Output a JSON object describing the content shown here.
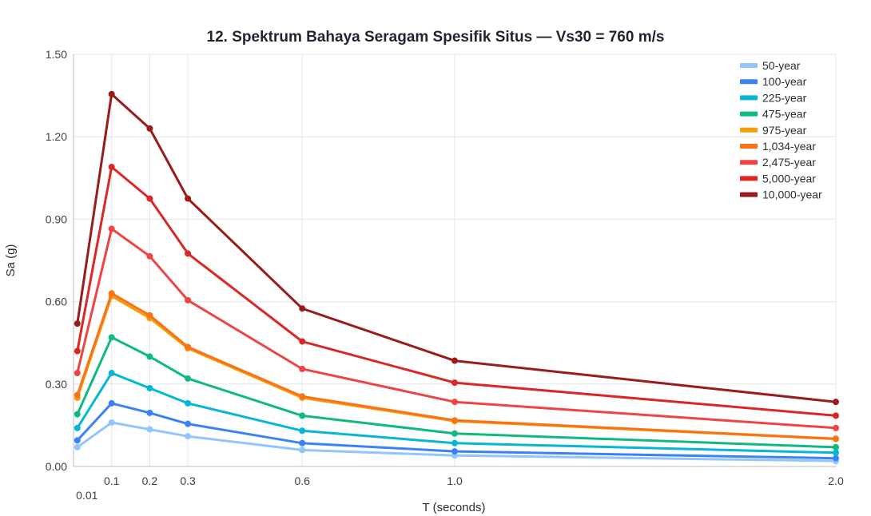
{
  "chart_data": {
    "type": "line",
    "title": "12. Spektrum Bahaya Seragam Spesifik Situs — Vs30 = 760 m/s",
    "xlabel": "T (seconds)",
    "ylabel": "Sa (g)",
    "x": [
      0.01,
      0.1,
      0.2,
      0.3,
      0.6,
      1.0,
      2.0
    ],
    "x_tick_labels": [
      "0.01",
      "0.1",
      "0.2",
      "0.3",
      "0.6",
      "1.0",
      "2.0"
    ],
    "xlim": [
      0.0,
      2.0
    ],
    "ylim": [
      0.0,
      1.5
    ],
    "y_ticks": [
      0.0,
      0.3,
      0.6,
      0.9,
      1.2,
      1.5
    ],
    "y_tick_labels": [
      "0.00",
      "0.30",
      "0.60",
      "0.90",
      "1.20",
      "1.50"
    ],
    "grid": true,
    "legend_position": "top-right",
    "series": [
      {
        "name": "50-year",
        "color": "#93c5fd",
        "values": [
          0.07,
          0.16,
          0.135,
          0.11,
          0.06,
          0.04,
          0.02
        ]
      },
      {
        "name": "100-year",
        "color": "#3b82f6",
        "values": [
          0.095,
          0.23,
          0.195,
          0.155,
          0.085,
          0.055,
          0.03
        ]
      },
      {
        "name": "225-year",
        "color": "#06b6d4",
        "values": [
          0.14,
          0.34,
          0.285,
          0.23,
          0.13,
          0.085,
          0.05
        ]
      },
      {
        "name": "475-year",
        "color": "#10b981",
        "values": [
          0.19,
          0.47,
          0.4,
          0.32,
          0.185,
          0.12,
          0.07
        ]
      },
      {
        "name": "975-year",
        "color": "#f59e0b",
        "values": [
          0.25,
          0.62,
          0.54,
          0.43,
          0.25,
          0.165,
          0.1
        ]
      },
      {
        "name": "1,034-year",
        "color": "#f97316",
        "values": [
          0.26,
          0.63,
          0.55,
          0.435,
          0.255,
          0.168,
          0.101
        ]
      },
      {
        "name": "2,475-year",
        "color": "#ef4444",
        "values": [
          0.34,
          0.865,
          0.765,
          0.605,
          0.355,
          0.235,
          0.14
        ]
      },
      {
        "name": "5,000-year",
        "color": "#dc2626",
        "values": [
          0.42,
          1.09,
          0.975,
          0.775,
          0.455,
          0.305,
          0.185
        ]
      },
      {
        "name": "10,000-year",
        "color": "#991b1b",
        "values": [
          0.52,
          1.355,
          1.23,
          0.975,
          0.575,
          0.385,
          0.235
        ]
      }
    ]
  }
}
